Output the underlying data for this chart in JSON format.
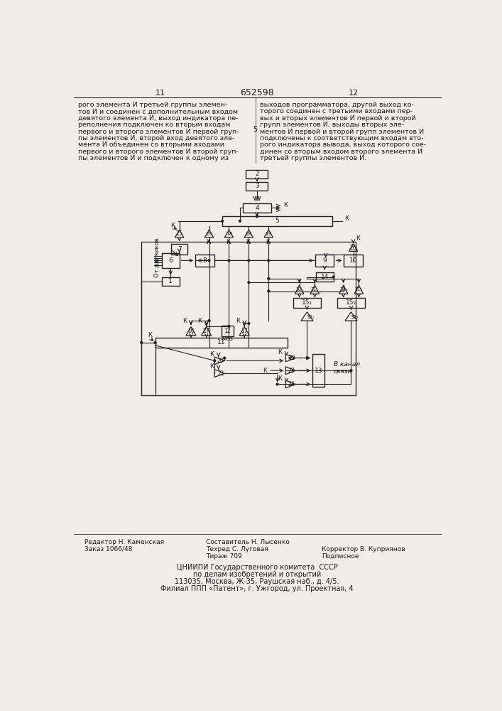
{
  "title": "652598",
  "page_left": "11",
  "page_right": "12",
  "bg_color": "#f0ede8",
  "text_color": "#1a1a1a",
  "line_color": "#222222",
  "text_left": "рого элемента И третьей группы элемен-\nтов И и соединен с дополнительным входом\nдевятого элемента И, выход индикатора пе-\nреполнения подключен ко вторым входам\nпервого и второго элементов И первой груп-\nпы элементов И, второй вход девятого эле-\nмента И объединен со вторыми входами\nпервого и второго элементов И второй груп-\nпы элементов И и подключен к одному из",
  "text_right": "выходов программатора, другой выход ко-\nторого соединен с третьими входами пер-\nвых и вторых элементов И первой и второй\nгрупп элементов И, выходы вторых эле-\nментов И первой и второй групп элементов И\nподключены к соответствующим входам вто-\nрого индикатора вывода, выход которого сое-\nдинен со вторым входом второго элемента И\nтретьей группы элементов И.",
  "line_number": "5",
  "footer_left1": "Редактор Н. Каменская",
  "footer_left2": "Заказ 1066/48",
  "footer_center1": "Составитель Н. Лысенко",
  "footer_center2": "Техред С. Луговая",
  "footer_center3": "Тираж 709",
  "footer_right1": "Корректор В. Куприянов",
  "footer_right2": "Подписное",
  "footer_org": "ЦНИИПИ Государственного комитета  СССР",
  "footer_org2": "по делам изобретений и открытий",
  "footer_addr": "113035, Москва, Ж-35, Раушская наб., д. 4/5.",
  "footer_filial": "Филиал ППП «Патент», г. Ужгород, ул. Проектная, 4"
}
